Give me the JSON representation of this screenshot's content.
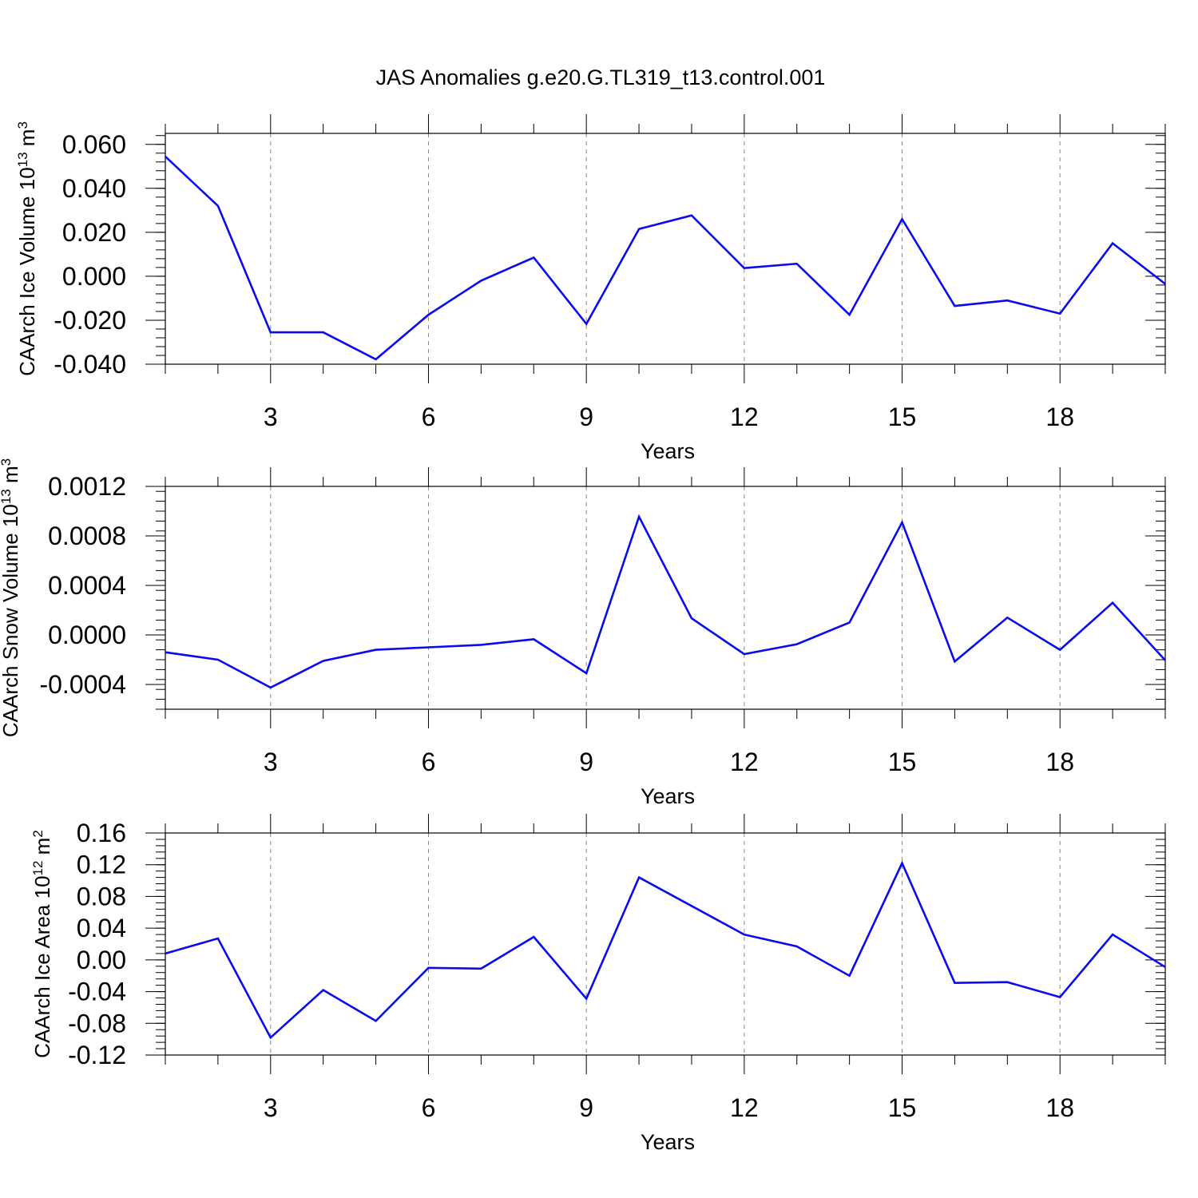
{
  "title": "JAS Anomalies g.e20.G.TL319_t13.control.001",
  "colors": {
    "line": "#0a0af0",
    "axis": "#000000",
    "grid": "#8a8a8a",
    "background": "#ffffff"
  },
  "chart_data": [
    {
      "type": "line",
      "title": "JAS Anomalies g.e20.G.TL319_t13.control.001",
      "xlabel": "Years",
      "ylabel": {
        "text": "CAArch Ice Volume 10",
        "exponent": "13",
        "unit": " m",
        "unit_exponent": "3"
      },
      "xlim": [
        1,
        20
      ],
      "ylim": [
        -0.04,
        0.065
      ],
      "x_ticks": [
        3,
        6,
        9,
        12,
        15,
        18
      ],
      "x_tick_labels": [
        "3",
        "6",
        "9",
        "12",
        "15",
        "18"
      ],
      "y_ticks": [
        -0.04,
        -0.02,
        0.0,
        0.02,
        0.04,
        0.06
      ],
      "y_tick_labels": [
        "-0.040",
        "-0.020",
        "0.000",
        "0.020",
        "0.040",
        "0.060"
      ],
      "grid": "vertical dashed at major x ticks",
      "series": [
        {
          "name": "CAArch Ice Volume",
          "x": [
            1,
            2,
            3,
            4,
            5,
            6,
            7,
            8,
            9,
            10,
            11,
            12,
            13,
            14,
            15,
            16,
            17,
            18,
            19,
            20
          ],
          "values": [
            0.0545,
            0.032,
            -0.0255,
            -0.0255,
            -0.0378,
            -0.0175,
            -0.002,
            0.0085,
            -0.0217,
            0.0215,
            0.0277,
            0.0037,
            0.0057,
            -0.0175,
            0.026,
            -0.0135,
            -0.011,
            -0.017,
            0.015,
            -0.0035
          ]
        }
      ]
    },
    {
      "type": "line",
      "xlabel": "Years",
      "ylabel": {
        "text": "CAArch Snow Volume 10",
        "exponent": "13",
        "unit": " m",
        "unit_exponent": "3"
      },
      "xlim": [
        1,
        20
      ],
      "ylim": [
        -0.0006,
        0.0012
      ],
      "x_ticks": [
        3,
        6,
        9,
        12,
        15,
        18
      ],
      "x_tick_labels": [
        "3",
        "6",
        "9",
        "12",
        "15",
        "18"
      ],
      "y_ticks": [
        -0.0004,
        0.0,
        0.0004,
        0.0008,
        0.0012
      ],
      "y_tick_labels": [
        "-0.0004",
        "0.0000",
        "0.0004",
        "0.0008",
        "0.0012"
      ],
      "grid": "vertical dashed at major x ticks",
      "series": [
        {
          "name": "CAArch Snow Volume",
          "x": [
            1,
            2,
            3,
            4,
            5,
            6,
            7,
            8,
            9,
            10,
            11,
            12,
            13,
            14,
            15,
            16,
            17,
            18,
            19,
            20
          ],
          "values": [
            -0.00014,
            -0.0002,
            -0.000425,
            -0.00021,
            -0.00012,
            -0.0001,
            -8e-05,
            -3.5e-05,
            -0.00031,
            0.000955,
            0.000135,
            -0.000155,
            -7.5e-05,
            0.0001,
            0.00091,
            -0.000215,
            0.00014,
            -0.00012,
            0.00026,
            -0.000205
          ]
        }
      ]
    },
    {
      "type": "line",
      "xlabel": "Years",
      "ylabel": {
        "text": "CAArch Ice Area 10",
        "exponent": "12",
        "unit": " m",
        "unit_exponent": "2"
      },
      "xlim": [
        1,
        20
      ],
      "ylim": [
        -0.12,
        0.16
      ],
      "x_ticks": [
        3,
        6,
        9,
        12,
        15,
        18
      ],
      "x_tick_labels": [
        "3",
        "6",
        "9",
        "12",
        "15",
        "18"
      ],
      "y_ticks": [
        -0.12,
        -0.08,
        -0.04,
        0.0,
        0.04,
        0.08,
        0.12,
        0.16
      ],
      "y_tick_labels": [
        "-0.12",
        "-0.08",
        "-0.04",
        "0.00",
        "0.04",
        "0.08",
        "0.12",
        "0.16"
      ],
      "grid": "vertical dashed at major x ticks",
      "series": [
        {
          "name": "CAArch Ice Area",
          "x": [
            1,
            2,
            3,
            4,
            5,
            6,
            7,
            8,
            9,
            10,
            11,
            12,
            13,
            14,
            15,
            16,
            17,
            18,
            19,
            20
          ],
          "values": [
            0.008,
            0.027,
            -0.098,
            -0.038,
            -0.077,
            -0.01,
            -0.011,
            0.029,
            -0.049,
            0.104,
            0.068,
            0.032,
            0.017,
            -0.02,
            0.122,
            -0.029,
            -0.028,
            -0.047,
            0.032,
            -0.009
          ]
        }
      ]
    }
  ]
}
